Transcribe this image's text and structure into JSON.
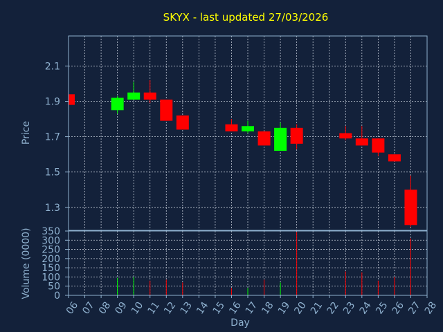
{
  "theme": {
    "background": "#13213a",
    "plot_background": "#13213a",
    "title_color": "#ffff00",
    "axis_text_color": "#8fb1cf",
    "frame_color": "#8fb1cf",
    "grid_color": "#c0c8d4",
    "up_color": "#00ff00",
    "down_color": "#ff0000"
  },
  "chart_data": [
    {
      "type": "candlestick",
      "title": "SKYX - last updated 27/03/2026",
      "ylabel": "Price",
      "ylim": [
        1.17,
        2.27
      ],
      "yticks": [
        "1.3",
        "1.5",
        "1.7",
        "1.9",
        "2.1"
      ],
      "grid": true,
      "candles": [
        {
          "day": "06",
          "open": 1.94,
          "high": 1.94,
          "low": 1.88,
          "close": 1.88
        },
        {
          "day": "09",
          "open": 1.85,
          "high": 1.93,
          "low": 1.83,
          "close": 1.92
        },
        {
          "day": "10",
          "open": 1.91,
          "high": 2.01,
          "low": 1.91,
          "close": 1.95
        },
        {
          "day": "11",
          "open": 1.95,
          "high": 2.02,
          "low": 1.89,
          "close": 1.91
        },
        {
          "day": "12",
          "open": 1.91,
          "high": 1.91,
          "low": 1.79,
          "close": 1.79
        },
        {
          "day": "13",
          "open": 1.82,
          "high": 1.82,
          "low": 1.74,
          "close": 1.74
        },
        {
          "day": "16",
          "open": 1.77,
          "high": 1.8,
          "low": 1.73,
          "close": 1.73
        },
        {
          "day": "17",
          "open": 1.73,
          "high": 1.79,
          "low": 1.72,
          "close": 1.76
        },
        {
          "day": "18",
          "open": 1.73,
          "high": 1.73,
          "low": 1.65,
          "close": 1.65
        },
        {
          "day": "19",
          "open": 1.62,
          "high": 1.78,
          "low": 1.62,
          "close": 1.75
        },
        {
          "day": "20",
          "open": 1.75,
          "high": 1.77,
          "low": 1.63,
          "close": 1.66
        },
        {
          "day": "23",
          "open": 1.72,
          "high": 1.76,
          "low": 1.68,
          "close": 1.69
        },
        {
          "day": "24",
          "open": 1.69,
          "high": 1.76,
          "low": 1.65,
          "close": 1.65
        },
        {
          "day": "25",
          "open": 1.69,
          "high": 1.69,
          "low": 1.59,
          "close": 1.61
        },
        {
          "day": "26",
          "open": 1.6,
          "high": 1.6,
          "low": 1.56,
          "close": 1.56
        },
        {
          "day": "27",
          "open": 1.4,
          "high": 1.48,
          "low": 1.19,
          "close": 1.2
        }
      ]
    },
    {
      "type": "bar",
      "ylabel": "Volume (0000)",
      "xlabel": "Day",
      "ylim": [
        0,
        350
      ],
      "yticks": [
        "0",
        "50",
        "100",
        "150",
        "200",
        "250",
        "300",
        "350"
      ],
      "grid": true,
      "categories": [
        "06",
        "07",
        "08",
        "09",
        "10",
        "11",
        "12",
        "13",
        "14",
        "15",
        "16",
        "17",
        "18",
        "19",
        "20",
        "21",
        "22",
        "23",
        "24",
        "25",
        "26",
        "27",
        "28"
      ],
      "values": [
        0,
        0,
        0,
        95,
        100,
        80,
        85,
        70,
        0,
        0,
        40,
        40,
        85,
        70,
        345,
        0,
        0,
        130,
        125,
        80,
        100,
        310,
        0
      ],
      "bar_colors": [
        "down",
        "",
        "",
        "up",
        "up",
        "down",
        "down",
        "down",
        "",
        "",
        "down",
        "up",
        "down",
        "up",
        "down",
        "",
        "",
        "down",
        "down",
        "down",
        "down",
        "down",
        ""
      ]
    }
  ]
}
